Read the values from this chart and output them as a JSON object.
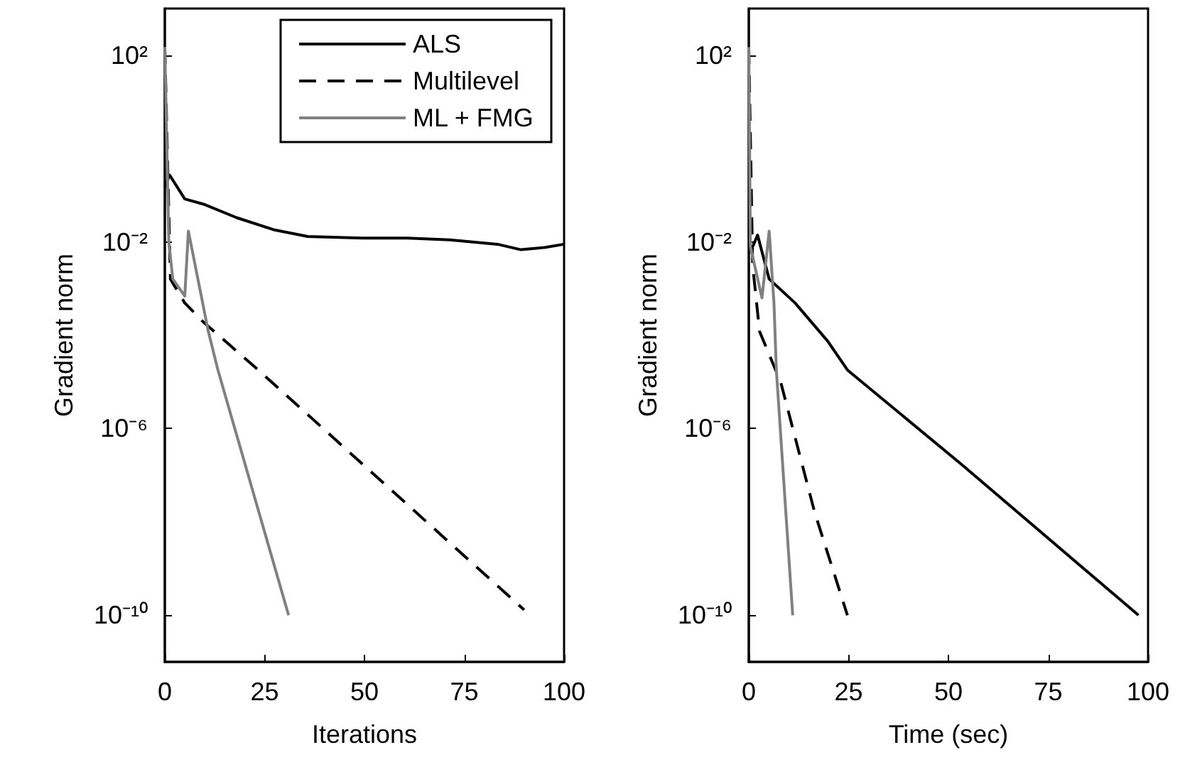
{
  "chart_data": [
    {
      "type": "line",
      "xlabel": "Iterations",
      "ylabel": "Gradient norm",
      "log": "y",
      "grid": false,
      "legend": "top right",
      "marker": "none",
      "xlim": [
        0,
        100
      ],
      "xticks": [
        0,
        25,
        50,
        75,
        100
      ],
      "ylim": [
        1e-11,
        1000
      ],
      "yticks": [
        {
          "value": 100,
          "label": "10²"
        },
        {
          "value": 0.01,
          "label": "10⁻²"
        },
        {
          "value": 1e-06,
          "label": "10⁻⁶"
        },
        {
          "value": 1e-10,
          "label": "10⁻¹⁰"
        }
      ],
      "series": [
        {
          "name": "ALS",
          "color": "#000000",
          "line_style": "solid",
          "x": [
            0,
            1.2,
            5,
            10,
            18,
            27.5,
            35.8,
            50,
            60.7,
            71.4,
            83.3,
            89.2,
            95.1,
            100
          ],
          "values": [
            0.15,
            0.27,
            0.083,
            0.063,
            0.033,
            0.018,
            0.013,
            0.012,
            0.012,
            0.011,
            0.0089,
            0.0068,
            0.0076,
            0.0089
          ]
        },
        {
          "name": "Multilevel",
          "color": "#000000",
          "line_style": "dashed",
          "x": [
            0,
            1.4,
            5,
            9.7,
            22.8,
            90
          ],
          "values": [
            150,
            0.0016,
            0.00049,
            0.00019,
            2e-05,
            1.3e-10
          ]
        },
        {
          "name": "ML + FMG",
          "color": "#808080",
          "line_style": "solid",
          "x": [
            0,
            1,
            2,
            5,
            5.9,
            10.9,
            13.3,
            31
          ],
          "values": [
            150,
            0.01,
            0.0016,
            0.00069,
            0.017,
            0.00012,
            1.8e-05,
            1e-10
          ]
        }
      ]
    },
    {
      "type": "line",
      "xlabel": "Time (sec)",
      "ylabel": "Gradient norm",
      "log": "y",
      "grid": false,
      "legend": false,
      "marker": "none",
      "xlim": [
        0,
        100
      ],
      "xticks": [
        0,
        25,
        50,
        75,
        100
      ],
      "ylim": [
        1e-11,
        1000
      ],
      "yticks": [
        {
          "value": 100,
          "label": "10²"
        },
        {
          "value": 0.01,
          "label": "10⁻²"
        },
        {
          "value": 1e-06,
          "label": "10⁻⁶"
        },
        {
          "value": 1e-10,
          "label": "10⁻¹⁰"
        }
      ],
      "series": [
        {
          "color": "#000000",
          "line_style": "solid",
          "x": [
            1,
            2.2,
            5.1,
            11.6,
            19.8,
            24.7,
            53.3,
            97.6
          ],
          "values": [
            0.008,
            0.014,
            0.0016,
            0.00049,
            7.4e-05,
            1.8e-05,
            1.7e-07,
            1e-10
          ]
        },
        {
          "color": "#000000",
          "line_style": "dashed",
          "x": [
            0,
            0.96,
            2.7,
            8,
            16.5,
            24.7
          ],
          "values": [
            150,
            0.0032,
            0.00012,
            9.8e-06,
            1.6e-08,
            1e-10
          ]
        },
        {
          "color": "#808080",
          "line_style": "solid",
          "x": [
            0,
            0.4,
            3.3,
            5.1,
            6.3,
            6.9,
            11
          ],
          "values": [
            150,
            0.0079,
            0.00063,
            0.017,
            0.0005,
            1.8e-05,
            1e-10
          ]
        }
      ]
    }
  ]
}
